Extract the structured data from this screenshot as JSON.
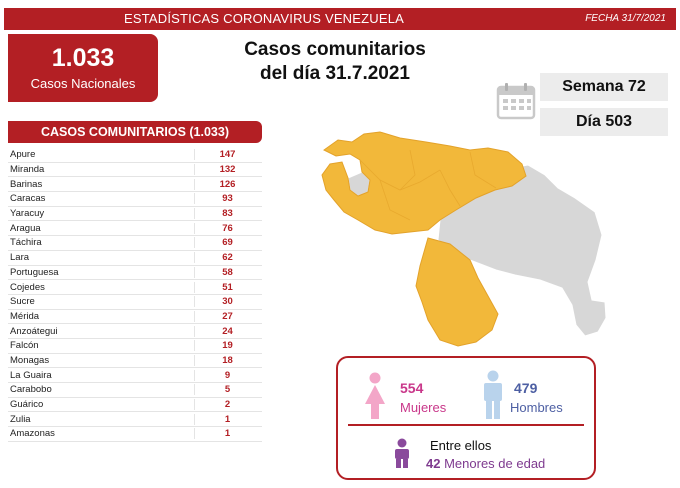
{
  "header": {
    "title": "ESTADÍSTICAS CORONAVIRUS VENEZUELA",
    "date": "FECHA 31/7/2021"
  },
  "national": {
    "count": "1.033",
    "label": "Casos Nacionales"
  },
  "heading": {
    "line1": "Casos comunitarios",
    "line2": "del día 31.7.2021"
  },
  "week": "Semana 72",
  "day": "Día 503",
  "table": {
    "title": "CASOS COMUNITARIOS (1.033)",
    "rows": [
      {
        "state": "Apure",
        "value": "147"
      },
      {
        "state": "Miranda",
        "value": "132"
      },
      {
        "state": "Barinas",
        "value": "126"
      },
      {
        "state": "Caracas",
        "value": "93"
      },
      {
        "state": "Yaracuy",
        "value": "83"
      },
      {
        "state": "Aragua",
        "value": "76"
      },
      {
        "state": "Táchira",
        "value": "69"
      },
      {
        "state": "Lara",
        "value": "62"
      },
      {
        "state": "Portuguesa",
        "value": "58"
      },
      {
        "state": "Cojedes",
        "value": "51"
      },
      {
        "state": "Sucre",
        "value": "30"
      },
      {
        "state": "Mérida",
        "value": "27"
      },
      {
        "state": "Anzoátegui",
        "value": "24"
      },
      {
        "state": "Falcón",
        "value": "19"
      },
      {
        "state": "Monagas",
        "value": "18"
      },
      {
        "state": "La Guaira",
        "value": "9"
      },
      {
        "state": "Carabobo",
        "value": "5"
      },
      {
        "state": "Guárico",
        "value": "2"
      },
      {
        "state": "Zulia",
        "value": "1"
      },
      {
        "state": "Amazonas",
        "value": "1"
      }
    ]
  },
  "gender": {
    "women_count": "554",
    "women_label": "Mujeres",
    "men_count": "479",
    "men_label": "Hombres",
    "kids_line1": "Entre ellos",
    "kids_count": "42",
    "kids_label": "Menores de edad"
  },
  "colors": {
    "brand_red": "#b31f24",
    "map_affected": "#f2b83a",
    "map_unaffected": "#d7d7d7",
    "women": "#f3a6c8",
    "men": "#b9d3ec",
    "kids": "#8a4a9c"
  },
  "icons": [
    "calendar-icon",
    "woman-icon",
    "man-icon",
    "child-icon"
  ]
}
